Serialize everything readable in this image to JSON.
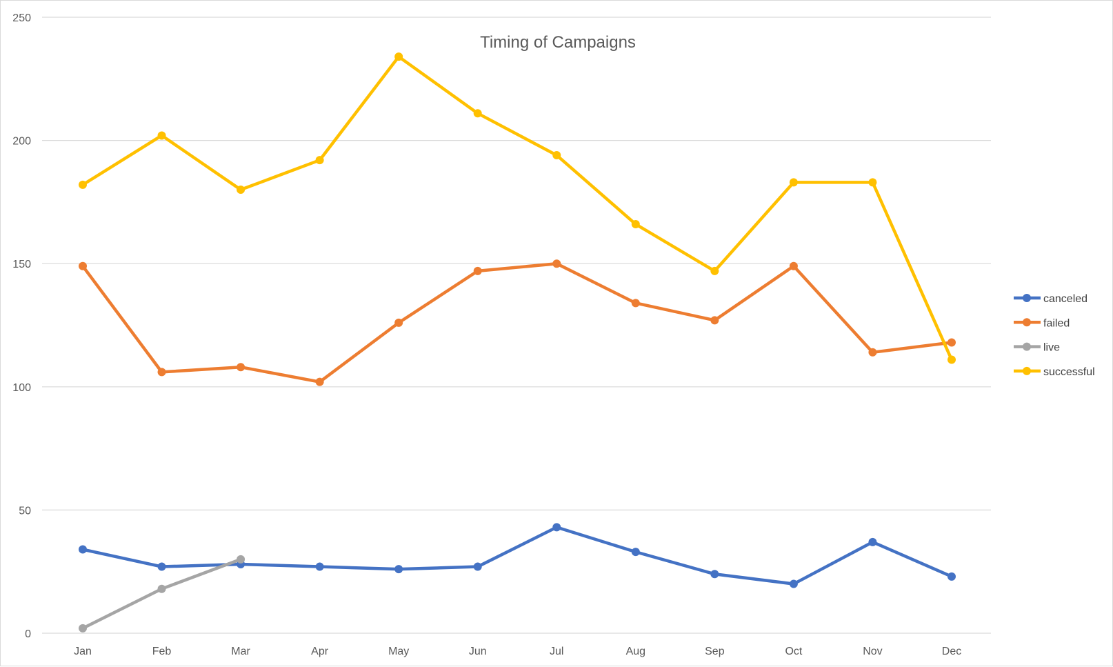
{
  "chart_data": {
    "type": "line",
    "title": "Timing of Campaigns",
    "categories": [
      "Jan",
      "Feb",
      "Mar",
      "Apr",
      "May",
      "Jun",
      "Jul",
      "Aug",
      "Sep",
      "Oct",
      "Nov",
      "Dec"
    ],
    "ylim": [
      0,
      250
    ],
    "yticks": [
      0,
      50,
      100,
      150,
      200,
      250
    ],
    "grid": true,
    "legend_position": "right",
    "series": [
      {
        "name": "canceled",
        "color": "#4472C4",
        "values": [
          34,
          27,
          28,
          27,
          26,
          27,
          43,
          33,
          24,
          20,
          37,
          23
        ]
      },
      {
        "name": "failed",
        "color": "#ED7D31",
        "values": [
          149,
          106,
          108,
          102,
          126,
          147,
          150,
          134,
          127,
          149,
          114,
          118
        ]
      },
      {
        "name": "live",
        "color": "#A5A5A5",
        "values": [
          2,
          18,
          30,
          null,
          null,
          null,
          null,
          null,
          null,
          null,
          null,
          null
        ]
      },
      {
        "name": "successful",
        "color": "#FFC000",
        "values": [
          182,
          202,
          180,
          192,
          234,
          211,
          194,
          166,
          147,
          183,
          183,
          111
        ]
      }
    ]
  }
}
